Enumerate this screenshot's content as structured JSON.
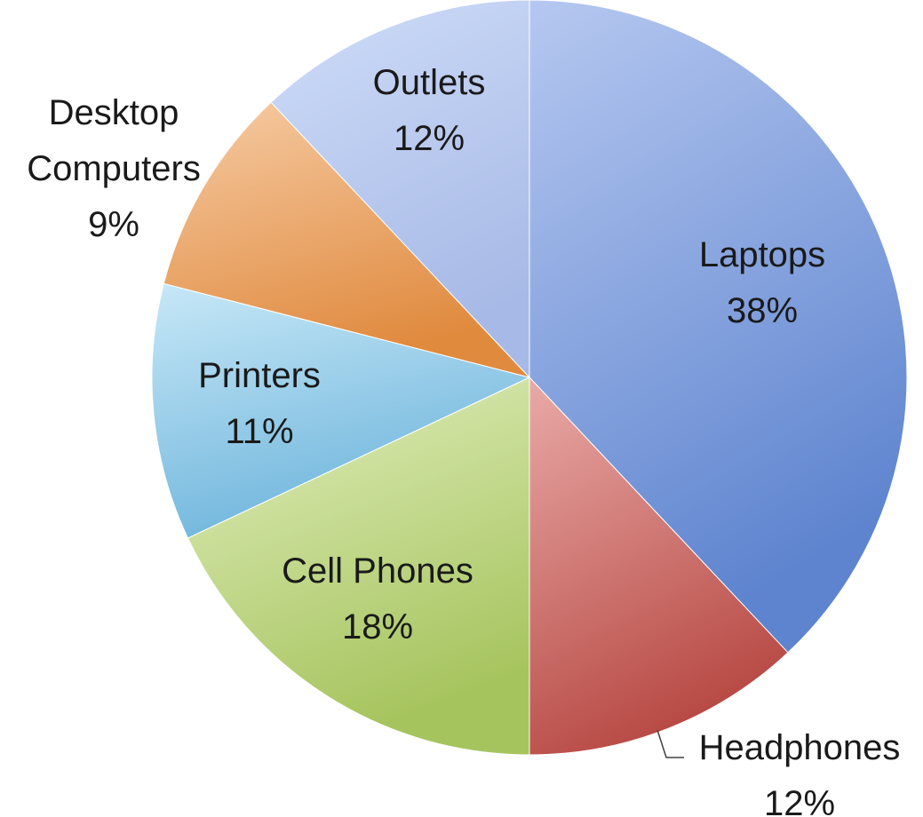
{
  "chart_data": {
    "type": "pie",
    "title": "",
    "start_angle_deg": 0,
    "direction": "clockwise",
    "slices": [
      {
        "label": "Laptops",
        "value": 38,
        "value_label": "38%",
        "color": "#7a9ad8"
      },
      {
        "label": "Headphones",
        "value": 12,
        "value_label": "12%",
        "color": "#cf7672"
      },
      {
        "label": "Cell Phones",
        "value": 18,
        "value_label": "18%",
        "color": "#c4d98a"
      },
      {
        "label": "Printers",
        "value": 11,
        "value_label": "11%",
        "color": "#98cde9"
      },
      {
        "label": "Desktop Computers",
        "value": 9,
        "value_label": "9%",
        "color": "#e9a160"
      },
      {
        "label": "Outlets",
        "value": 12,
        "value_label": "12%",
        "color": "#b3c6ec"
      }
    ],
    "gradients": {
      "Laptops": [
        "#b6c8f0",
        "#5e84cf"
      ],
      "Headphones": [
        "#e9aaa7",
        "#b84a45"
      ],
      "Cell Phones": [
        "#e2efc0",
        "#a6c45e"
      ],
      "Printers": [
        "#c7e8f7",
        "#6fb5dc"
      ],
      "Desktop Computers": [
        "#f6cba4",
        "#e08a3e"
      ],
      "Outlets": [
        "#cfddf8",
        "#a7b9e6"
      ]
    }
  }
}
